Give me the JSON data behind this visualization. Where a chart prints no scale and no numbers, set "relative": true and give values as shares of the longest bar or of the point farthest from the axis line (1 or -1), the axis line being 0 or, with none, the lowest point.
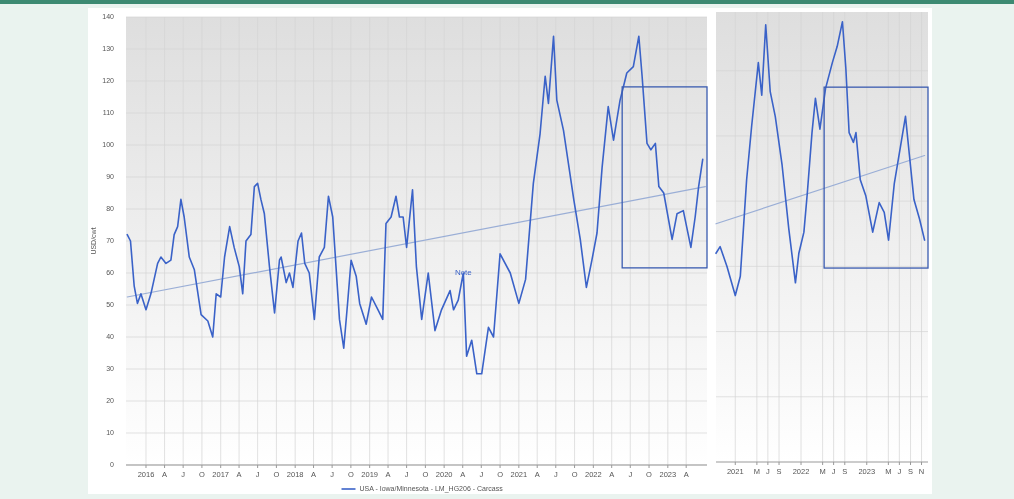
{
  "chart_data": [
    {
      "type": "line",
      "ylabel": "USD/cwt",
      "xlim": [
        "2015-09-25",
        "2023-07-12"
      ],
      "ylim": [
        0,
        140
      ],
      "yticks": [
        0,
        10,
        20,
        30,
        40,
        50,
        60,
        70,
        80,
        90,
        100,
        110,
        120,
        130,
        140
      ],
      "xticks": [
        {
          "value": "2016-01-01",
          "label": "2016"
        },
        {
          "value": "2016-04-01",
          "label": "A"
        },
        {
          "value": "2016-07-01",
          "label": "J"
        },
        {
          "value": "2016-10-01",
          "label": "O"
        },
        {
          "value": "2017-01-01",
          "label": "2017"
        },
        {
          "value": "2017-04-01",
          "label": "A"
        },
        {
          "value": "2017-07-01",
          "label": "J"
        },
        {
          "value": "2017-10-01",
          "label": "O"
        },
        {
          "value": "2018-01-01",
          "label": "2018"
        },
        {
          "value": "2018-04-01",
          "label": "A"
        },
        {
          "value": "2018-07-01",
          "label": "J"
        },
        {
          "value": "2018-10-01",
          "label": "O"
        },
        {
          "value": "2019-01-01",
          "label": "2019"
        },
        {
          "value": "2019-04-01",
          "label": "A"
        },
        {
          "value": "2019-07-01",
          "label": "J"
        },
        {
          "value": "2019-10-01",
          "label": "O"
        },
        {
          "value": "2020-01-01",
          "label": "2020"
        },
        {
          "value": "2020-04-01",
          "label": "A"
        },
        {
          "value": "2020-07-01",
          "label": "J"
        },
        {
          "value": "2020-10-01",
          "label": "O"
        },
        {
          "value": "2021-01-01",
          "label": "2021"
        },
        {
          "value": "2021-04-01",
          "label": "A"
        },
        {
          "value": "2021-07-01",
          "label": "J"
        },
        {
          "value": "2021-10-01",
          "label": "O"
        },
        {
          "value": "2022-01-01",
          "label": "2022"
        },
        {
          "value": "2022-04-01",
          "label": "A"
        },
        {
          "value": "2022-07-01",
          "label": "J"
        },
        {
          "value": "2022-10-01",
          "label": "O"
        },
        {
          "value": "2023-01-01",
          "label": "2023"
        },
        {
          "value": "2023-04-01",
          "label": "A"
        }
      ],
      "grid": true,
      "legend": "bottom",
      "annotations": [
        {
          "text": "Note",
          "x": "2020-04-04",
          "y": 60
        }
      ],
      "series": [
        {
          "name": "USA - Iowa/Minnesota - LM_HG206 - Carcass",
          "color": "#3a62c8",
          "x": [
            "2015-10-01",
            "2015-10-17",
            "2015-11-04",
            "2015-11-20",
            "2015-12-07",
            "2016-01-01",
            "2016-01-25",
            "2016-02-27",
            "2016-03-14",
            "2016-04-08",
            "2016-05-02",
            "2016-05-18",
            "2016-06-04",
            "2016-06-20",
            "2016-07-06",
            "2016-07-31",
            "2016-08-25",
            "2016-09-27",
            "2016-10-30",
            "2016-11-23",
            "2016-12-10",
            "2017-01-01",
            "2017-01-20",
            "2017-02-14",
            "2017-03-08",
            "2017-04-02",
            "2017-04-19",
            "2017-05-05",
            "2017-05-29",
            "2017-06-15",
            "2017-07-01",
            "2017-07-17",
            "2017-08-03",
            "2017-08-28",
            "2017-09-22",
            "2017-10-16",
            "2017-10-24",
            "2017-11-18",
            "2017-12-04",
            "2017-12-21",
            "2018-01-15",
            "2018-02-01",
            "2018-02-17",
            "2018-03-11",
            "2018-04-05",
            "2018-04-29",
            "2018-05-24",
            "2018-06-13",
            "2018-07-04",
            "2018-07-20",
            "2018-08-06",
            "2018-08-27",
            "2018-09-16",
            "2018-10-02",
            "2018-10-27",
            "2018-11-13",
            "2018-12-15",
            "2019-01-10",
            "2019-02-11",
            "2019-03-06",
            "2019-03-22",
            "2019-04-16",
            "2019-05-10",
            "2019-05-27",
            "2019-06-14",
            "2019-07-01",
            "2019-07-30",
            "2019-08-18",
            "2019-09-13",
            "2019-10-15",
            "2019-11-17",
            "2019-12-19",
            "2020-01-30",
            "2020-02-16",
            "2020-03-10",
            "2020-04-04",
            "2020-04-20",
            "2020-05-15",
            "2020-06-09",
            "2020-07-03",
            "2020-08-05",
            "2020-08-30",
            "2020-10-01",
            "2020-11-20",
            "2021-01-01",
            "2021-02-03",
            "2021-03-13",
            "2021-04-15",
            "2021-05-10",
            "2021-05-26",
            "2021-06-20",
            "2021-07-06",
            "2021-08-08",
            "2021-09-27",
            "2021-10-29",
            "2021-11-28",
            "2021-12-25",
            "2022-01-19",
            "2022-02-13",
            "2022-03-15",
            "2022-04-10",
            "2022-05-12",
            "2022-06-14",
            "2022-07-16",
            "2022-08-12",
            "2022-08-28",
            "2022-09-21",
            "2022-10-10",
            "2022-11-01",
            "2022-11-18",
            "2022-12-12",
            "2023-01-22",
            "2023-02-15",
            "2023-03-18",
            "2023-04-24",
            "2023-05-15",
            "2023-06-01",
            "2023-06-21"
          ],
          "values": [
            72,
            70,
            56,
            50.5,
            53.5,
            48.5,
            53.5,
            63,
            65,
            63,
            64,
            72,
            74.5,
            83,
            77.5,
            65,
            61,
            47,
            45,
            40,
            53.5,
            52.5,
            65,
            74.5,
            68,
            62,
            53.5,
            70,
            72,
            87,
            88,
            83,
            78.5,
            62,
            47.5,
            64,
            65,
            57,
            60,
            55.5,
            70,
            72.5,
            63,
            60,
            45.5,
            65,
            68,
            84,
            77.5,
            62,
            45.5,
            36.5,
            51.5,
            64,
            59,
            50.5,
            44,
            52.5,
            48.5,
            45.5,
            75.5,
            77.5,
            84,
            77.5,
            77.5,
            68,
            86,
            62,
            45.5,
            60,
            42,
            48.5,
            54.5,
            48.5,
            51.5,
            60,
            34,
            39,
            28.5,
            28.5,
            43,
            40,
            66,
            60,
            50.5,
            58,
            88,
            103.5,
            121.5,
            113,
            134,
            114,
            104.5,
            83,
            70.5,
            55.5,
            64,
            72.5,
            93,
            112,
            101.5,
            114,
            122.5,
            124.5,
            134,
            121.5,
            100.5,
            98.5,
            100.5,
            87,
            85,
            70.5,
            78.5,
            79.5,
            68,
            77.5,
            87,
            95.5
          ]
        },
        {
          "type": "line",
          "color": "#9aaed6",
          "x": [
            "2015-10-01",
            "2023-07-04"
          ],
          "values": [
            52.5,
            87
          ]
        }
      ]
    },
    {
      "type": "line",
      "xlim": [
        "2020-09-16",
        "2023-12-07"
      ],
      "relative": true,
      "tick_labels": "x",
      "grid": true,
      "xticks": [
        {
          "value": "2021-01-01",
          "label": "2021"
        },
        {
          "value": "2021-05-01",
          "label": "M"
        },
        {
          "value": "2021-07-01",
          "label": "J"
        },
        {
          "value": "2021-09-01",
          "label": "S"
        },
        {
          "value": "2022-01-01",
          "label": "2022"
        },
        {
          "value": "2022-05-01",
          "label": "M"
        },
        {
          "value": "2022-07-01",
          "label": "J"
        },
        {
          "value": "2022-09-01",
          "label": "S"
        },
        {
          "value": "2023-01-01",
          "label": "2023"
        },
        {
          "value": "2023-05-01",
          "label": "M"
        },
        {
          "value": "2023-07-01",
          "label": "J"
        },
        {
          "value": "2023-09-01",
          "label": "S"
        },
        {
          "value": "2023-11-01",
          "label": "N"
        }
      ],
      "series": [
        {
          "color": "#3a62c8",
          "x": [
            "2020-09-16",
            "2020-10-09",
            "2020-11-16",
            "2021-01-01",
            "2021-01-29",
            "2021-03-05",
            "2021-04-02",
            "2021-05-09",
            "2021-05-28",
            "2021-06-19",
            "2021-07-14",
            "2021-08-11",
            "2021-09-18",
            "2021-10-25",
            "2021-12-01",
            "2021-12-20",
            "2022-01-17",
            "2022-02-05",
            "2022-03-03",
            "2022-03-22",
            "2022-04-16",
            "2022-05-17",
            "2022-06-24",
            "2022-07-21",
            "2022-08-19",
            "2022-09-07",
            "2022-09-25",
            "2022-10-19",
            "2022-11-02",
            "2022-11-26",
            "2022-12-27",
            "2023-02-03",
            "2023-03-11",
            "2023-04-08",
            "2023-05-02",
            "2023-06-03",
            "2023-07-05",
            "2023-08-04",
            "2023-08-26",
            "2023-09-20",
            "2023-10-21",
            "2023-11-18"
          ],
          "values": [
            0.474,
            0.489,
            0.444,
            0.378,
            0.422,
            0.641,
            0.763,
            0.907,
            0.833,
            0.993,
            0.841,
            0.785,
            0.674,
            0.53,
            0.407,
            0.474,
            0.522,
            0.611,
            0.748,
            0.826,
            0.756,
            0.848,
            0.907,
            0.944,
            1,
            0.893,
            0.748,
            0.726,
            0.748,
            0.641,
            0.604,
            0.522,
            0.589,
            0.567,
            0.504,
            0.633,
            0.711,
            0.785,
            0.696,
            0.596,
            0.552,
            0.504
          ]
        },
        {
          "type": "line",
          "color": "#9aaed6",
          "x": [
            "2020-09-16",
            "2023-11-18"
          ],
          "values": [
            0.541,
            0.696
          ]
        }
      ]
    }
  ]
}
